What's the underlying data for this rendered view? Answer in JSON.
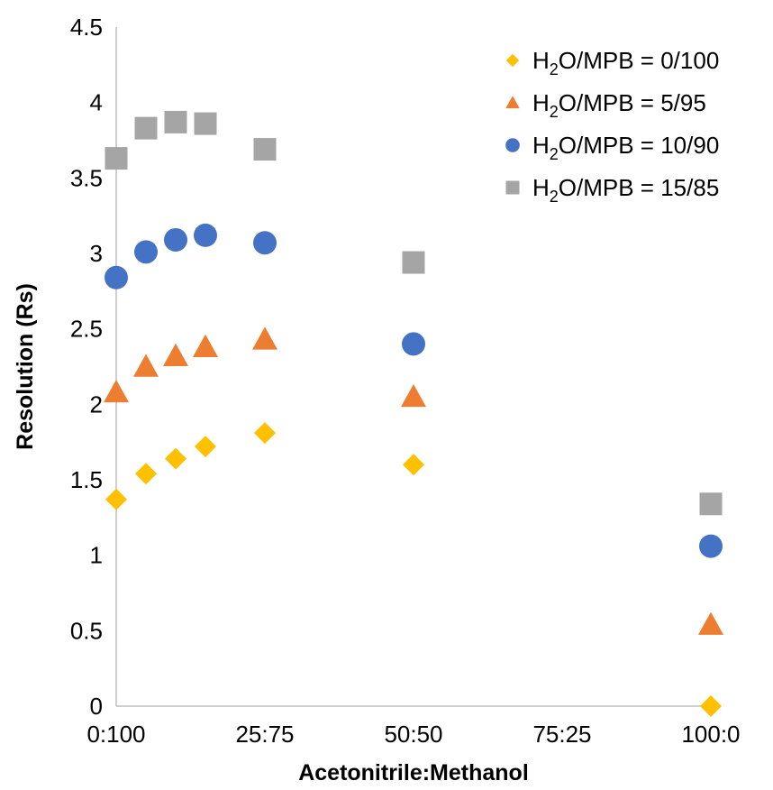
{
  "chart_data": {
    "type": "scatter",
    "xlabel": "Acetonitrile:Methanol",
    "ylabel": "Resolution (Rs)",
    "xlim": [
      0,
      100
    ],
    "ylim": [
      0,
      4.5
    ],
    "x_ticks": [
      {
        "value": 0,
        "label": "0:100"
      },
      {
        "value": 25,
        "label": "25:75"
      },
      {
        "value": 50,
        "label": "50:50"
      },
      {
        "value": 75,
        "label": "75:25"
      },
      {
        "value": 100,
        "label": "100:0"
      }
    ],
    "y_ticks": [
      {
        "value": 0,
        "label": "0"
      },
      {
        "value": 0.5,
        "label": "0.5"
      },
      {
        "value": 1,
        "label": "1"
      },
      {
        "value": 1.5,
        "label": "1.5"
      },
      {
        "value": 2,
        "label": "2"
      },
      {
        "value": 2.5,
        "label": "2.5"
      },
      {
        "value": 3,
        "label": "3"
      },
      {
        "value": 3.5,
        "label": "3.5"
      },
      {
        "value": 4,
        "label": "4"
      },
      {
        "value": 4.5,
        "label": "4.5"
      }
    ],
    "grid": false,
    "legend_position": "top-right",
    "x": [
      0,
      5,
      10,
      15,
      25,
      50,
      100
    ],
    "series": [
      {
        "name_main": "H",
        "name_sub": "2",
        "name_rest": "O/MPB = 0/100",
        "marker": "diamond",
        "color": "#FFC000",
        "values": [
          1.37,
          1.54,
          1.64,
          1.72,
          1.81,
          1.6,
          0.0
        ]
      },
      {
        "name_main": "H",
        "name_sub": "2",
        "name_rest": "O/MPB = 5/95",
        "marker": "triangle",
        "color": "#ED7D31",
        "values": [
          2.08,
          2.25,
          2.32,
          2.38,
          2.43,
          2.05,
          0.54
        ]
      },
      {
        "name_main": "H",
        "name_sub": "2",
        "name_rest": "O/MPB = 10/90",
        "marker": "circle",
        "color": "#4472C4",
        "values": [
          2.84,
          3.01,
          3.09,
          3.12,
          3.07,
          2.4,
          1.06
        ]
      },
      {
        "name_main": "H",
        "name_sub": "2",
        "name_rest": "O/MPB = 15/85",
        "marker": "square",
        "color": "#A5A5A5",
        "values": [
          3.63,
          3.83,
          3.87,
          3.86,
          3.69,
          2.94,
          1.34
        ]
      }
    ]
  }
}
